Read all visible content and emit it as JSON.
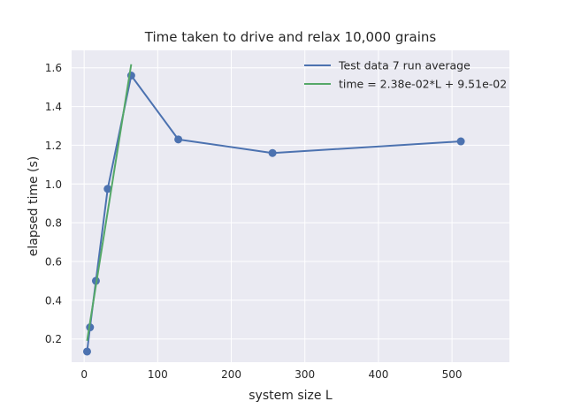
{
  "chart_data": {
    "type": "line",
    "title": "Time taken to drive and relax 10,000 grains",
    "xlabel": "system size L",
    "ylabel": "elapsed time (s)",
    "xlim": [
      -17,
      578
    ],
    "ylim": [
      0.08,
      1.69
    ],
    "xticks": [
      0,
      100,
      200,
      300,
      400,
      500
    ],
    "yticks": [
      0.2,
      0.4,
      0.6,
      0.8,
      1.0,
      1.2,
      1.4,
      1.6
    ],
    "xtick_labels": [
      "0",
      "100",
      "200",
      "300",
      "400",
      "500"
    ],
    "ytick_labels": [
      "0.2",
      "0.4",
      "0.6",
      "0.8",
      "1.0",
      "1.2",
      "1.4",
      "1.6"
    ],
    "grid": true,
    "legend_position": "top-right",
    "series": [
      {
        "name": "Test data 7 run average",
        "kind": "line-marker",
        "color": "#4c72b0",
        "x": [
          4,
          8,
          16,
          32,
          64,
          128,
          256,
          512
        ],
        "y": [
          0.135,
          0.26,
          0.5,
          0.975,
          1.56,
          1.23,
          1.16,
          1.22
        ]
      },
      {
        "name": "time = 2.38e-02*L + 9.51e-02",
        "kind": "line",
        "color": "#55a868",
        "x": [
          4,
          64
        ],
        "y": [
          0.1903,
          1.6183
        ]
      }
    ]
  }
}
